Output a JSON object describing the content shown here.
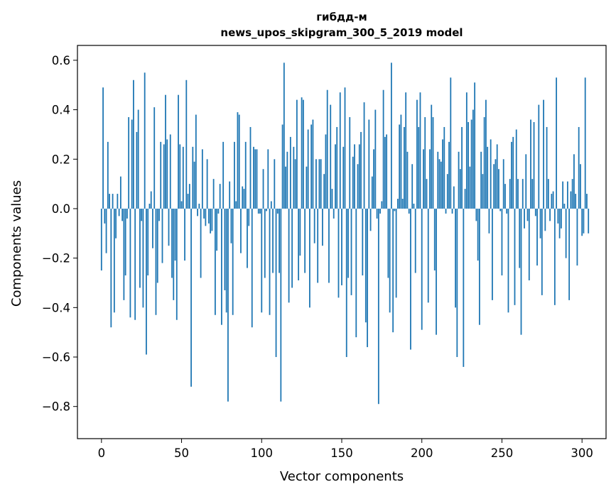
{
  "chart_data": {
    "type": "bar",
    "title_line1": "гибдд-м",
    "title_line2": "news_upos_skipgram_300_5_2019 model",
    "xlabel": "Vector components",
    "ylabel": "Components values",
    "xlim": [
      -15,
      315
    ],
    "ylim": [
      -0.93,
      0.66
    ],
    "xticks": [
      0,
      50,
      100,
      150,
      200,
      250,
      300
    ],
    "xtick_labels": [
      "0",
      "50",
      "100",
      "150",
      "200",
      "250",
      "300"
    ],
    "yticks": [
      -0.8,
      -0.6,
      -0.4,
      -0.2,
      0.0,
      0.2,
      0.4,
      0.6
    ],
    "ytick_labels": [
      "−0.8",
      "−0.6",
      "−0.4",
      "−0.2",
      "0.0",
      "0.2",
      "0.4",
      "0.6"
    ],
    "bar_color": "#1f77b4",
    "values": [
      -0.25,
      0.49,
      -0.06,
      -0.18,
      0.27,
      0.06,
      -0.48,
      0.06,
      -0.42,
      -0.12,
      0.06,
      -0.03,
      0.13,
      -0.05,
      -0.37,
      -0.27,
      -0.04,
      0.37,
      -0.44,
      0.36,
      0.52,
      -0.45,
      0.31,
      0.4,
      -0.32,
      -0.05,
      -0.4,
      0.55,
      -0.59,
      -0.27,
      0.02,
      0.07,
      -0.16,
      0.41,
      -0.43,
      -0.3,
      -0.05,
      0.27,
      -0.22,
      0.26,
      0.46,
      0.28,
      -0.15,
      0.3,
      -0.28,
      -0.37,
      -0.21,
      -0.45,
      0.46,
      0.26,
      0.03,
      0.25,
      -0.21,
      0.52,
      0.06,
      0.1,
      -0.72,
      0.25,
      0.19,
      0.38,
      -0.03,
      0.02,
      -0.28,
      0.24,
      -0.04,
      -0.07,
      0.2,
      -0.06,
      -0.1,
      -0.09,
      0.12,
      -0.43,
      -0.17,
      -0.02,
      0.1,
      -0.47,
      0.27,
      -0.33,
      -0.42,
      -0.78,
      0.11,
      -0.14,
      -0.43,
      0.27,
      0.03,
      0.39,
      0.38,
      -0.18,
      0.09,
      0.08,
      0.27,
      -0.24,
      -0.07,
      0.33,
      -0.48,
      0.25,
      0.24,
      0.24,
      -0.02,
      -0.02,
      -0.42,
      0.16,
      -0.28,
      -0.01,
      0.24,
      -0.43,
      0.03,
      -0.26,
      0.2,
      -0.6,
      -0.02,
      -0.26,
      -0.78,
      0.34,
      0.59,
      0.17,
      0.23,
      -0.38,
      0.29,
      -0.32,
      0.25,
      0.2,
      0.44,
      -0.29,
      -0.19,
      0.45,
      0.44,
      -0.26,
      0.17,
      0.32,
      -0.4,
      0.34,
      0.36,
      -0.14,
      0.2,
      -0.3,
      0.2,
      0.2,
      -0.15,
      0.14,
      0.3,
      0.48,
      -0.3,
      0.42,
      0.08,
      -0.04,
      0.26,
      0.33,
      -0.36,
      0.47,
      -0.31,
      0.25,
      0.49,
      -0.6,
      -0.28,
      0.37,
      -0.35,
      0.21,
      0.26,
      -0.52,
      0.18,
      0.26,
      0.31,
      -0.27,
      0.43,
      -0.46,
      -0.56,
      0.36,
      -0.09,
      0.13,
      0.24,
      0.4,
      -0.04,
      -0.79,
      -0.02,
      0.03,
      0.48,
      0.29,
      0.3,
      -0.28,
      -0.42,
      0.59,
      -0.5,
      -0.01,
      -0.36,
      0.04,
      0.34,
      0.38,
      0.04,
      0.33,
      0.47,
      0.23,
      -0.02,
      -0.57,
      0.18,
      0.02,
      -0.26,
      0.44,
      0.33,
      0.47,
      -0.49,
      0.24,
      0.37,
      0.12,
      -0.38,
      0.24,
      0.42,
      0.37,
      -0.25,
      -0.51,
      0.23,
      0.2,
      0.19,
      0.28,
      0.33,
      -0.02,
      0.14,
      0.27,
      0.53,
      -0.02,
      0.09,
      -0.4,
      -0.6,
      0.23,
      0.16,
      0.33,
      -0.64,
      0.08,
      0.47,
      0.35,
      0.17,
      0.36,
      0.4,
      0.51,
      -0.05,
      -0.21,
      -0.47,
      0.23,
      0.14,
      0.37,
      0.44,
      0.25,
      -0.1,
      0.28,
      -0.37,
      0.18,
      0.2,
      0.26,
      0.16,
      -0.01,
      -0.27,
      0.2,
      0.1,
      -0.02,
      -0.42,
      0.12,
      0.27,
      0.29,
      -0.39,
      0.32,
      0.12,
      -0.24,
      -0.51,
      0.12,
      -0.08,
      0.22,
      -0.05,
      -0.29,
      0.36,
      0.12,
      0.35,
      -0.03,
      -0.23,
      0.42,
      -0.12,
      -0.35,
      0.44,
      -0.09,
      0.33,
      0.12,
      -0.05,
      0.06,
      0.07,
      -0.39,
      0.53,
      -0.06,
      -0.12,
      -0.08,
      0.11,
      0.02,
      -0.2,
      0.11,
      -0.37,
      0.07,
      0.12,
      0.22,
      0.06,
      -0.23,
      0.33,
      0.18,
      -0.11,
      -0.1,
      0.53,
      0.06,
      -0.1
    ]
  }
}
